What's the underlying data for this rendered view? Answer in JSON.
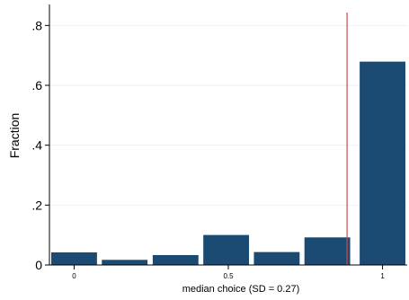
{
  "chart_data": {
    "type": "bar",
    "title": "",
    "xlabel": "median choice (SD = 0.27)",
    "ylabel": "Fraction",
    "xlim": [
      -0.08,
      1.08
    ],
    "ylim": [
      0,
      0.87
    ],
    "yticks": [
      {
        "value": 0,
        "label": "0"
      },
      {
        "value": 0.2,
        "label": ".2"
      },
      {
        "value": 0.4,
        "label": ".4"
      },
      {
        "value": 0.6,
        "label": ".6"
      },
      {
        "value": 0.8,
        "label": ".8"
      }
    ],
    "xticks": [
      {
        "value": 0,
        "label": "0"
      },
      {
        "value": 0.5,
        "label": "0.5"
      },
      {
        "value": 1,
        "label": "1"
      }
    ],
    "bars": [
      {
        "x_start": -0.075,
        "x_end": 0.075,
        "value": 0.043
      },
      {
        "x_start": 0.089,
        "x_end": 0.239,
        "value": 0.018
      },
      {
        "x_start": 0.254,
        "x_end": 0.404,
        "value": 0.034
      },
      {
        "x_start": 0.418,
        "x_end": 0.568,
        "value": 0.101
      },
      {
        "x_start": 0.582,
        "x_end": 0.732,
        "value": 0.044
      },
      {
        "x_start": 0.746,
        "x_end": 0.896,
        "value": 0.093
      },
      {
        "x_start": 0.925,
        "x_end": 1.075,
        "value": 0.68
      }
    ],
    "reference_line": {
      "x": 0.885,
      "color": "#c0504d"
    },
    "grid": true,
    "bar_color": "#1b4a72"
  }
}
